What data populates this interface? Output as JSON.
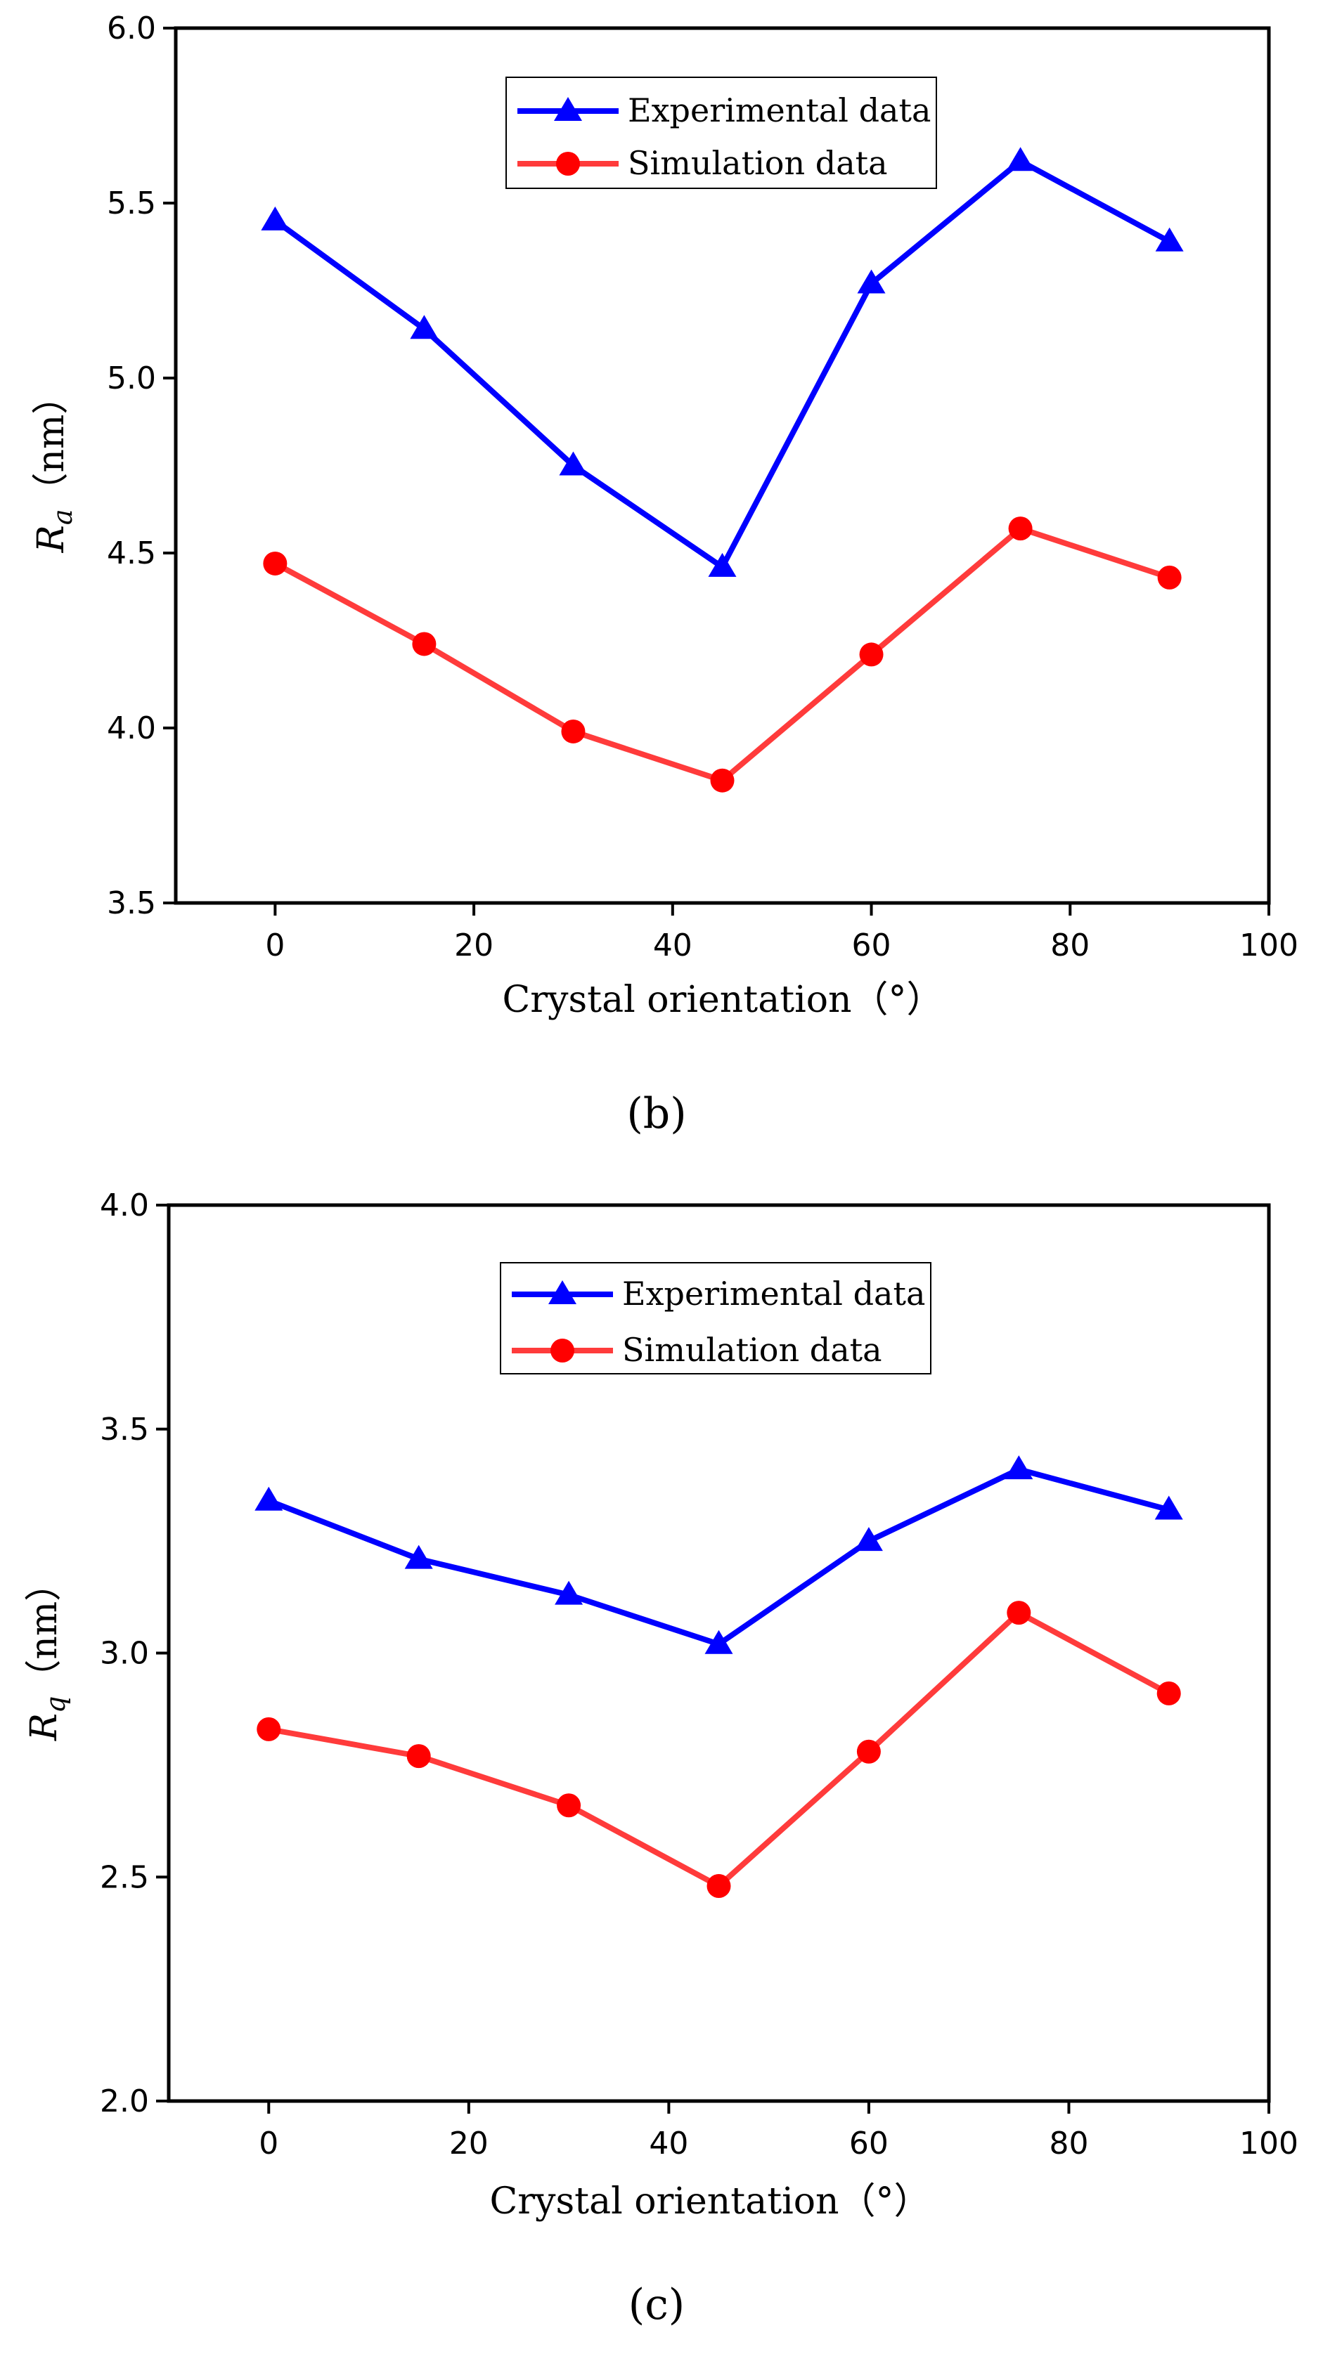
{
  "chart_data": [
    {
      "type": "line",
      "x": [
        0,
        15,
        30,
        45,
        60,
        75,
        90
      ],
      "series": [
        {
          "name": "Experimental data",
          "marker": "triangle",
          "color": "#0000ff",
          "values": [
            5.45,
            5.14,
            4.75,
            4.46,
            5.27,
            5.62,
            5.39
          ]
        },
        {
          "name": "Simulation data",
          "marker": "circle",
          "color": "#ff3b3b",
          "values": [
            4.47,
            4.24,
            3.99,
            3.85,
            4.21,
            4.57,
            4.43
          ]
        }
      ],
      "xlabel": "Crystal orientation（°）",
      "ylabel_main": "R",
      "ylabel_sub": "a",
      "ylabel_unit": "（nm）",
      "xlim": [
        -10,
        100
      ],
      "ylim": [
        3.5,
        6.0
      ],
      "xticks": [
        "0",
        "20",
        "40",
        "60",
        "80",
        "100"
      ],
      "yticks": [
        "3.5",
        "4.0",
        "4.5",
        "5.0",
        "5.5",
        "6.0"
      ],
      "legend_position": "top-center",
      "caption": "(b)"
    },
    {
      "type": "line",
      "x": [
        0,
        15,
        30,
        45,
        60,
        75,
        90
      ],
      "series": [
        {
          "name": "Experimental data",
          "marker": "triangle",
          "color": "#0000ff",
          "values": [
            3.34,
            3.21,
            3.13,
            3.02,
            3.25,
            3.41,
            3.32
          ]
        },
        {
          "name": "Simulation data",
          "marker": "circle",
          "color": "#ff3b3b",
          "values": [
            2.83,
            2.77,
            2.66,
            2.48,
            2.78,
            3.09,
            2.91
          ]
        }
      ],
      "xlabel": "Crystal orientation（°）",
      "ylabel_main": "R",
      "ylabel_sub": "q",
      "ylabel_unit": "（nm）",
      "xlim": [
        -10,
        100
      ],
      "ylim": [
        2.0,
        4.0
      ],
      "xticks": [
        "0",
        "20",
        "40",
        "60",
        "80",
        "100"
      ],
      "yticks": [
        "2.0",
        "2.5",
        "3.0",
        "3.5",
        "4.0"
      ],
      "legend_position": "top-center",
      "caption": "(c)"
    }
  ]
}
